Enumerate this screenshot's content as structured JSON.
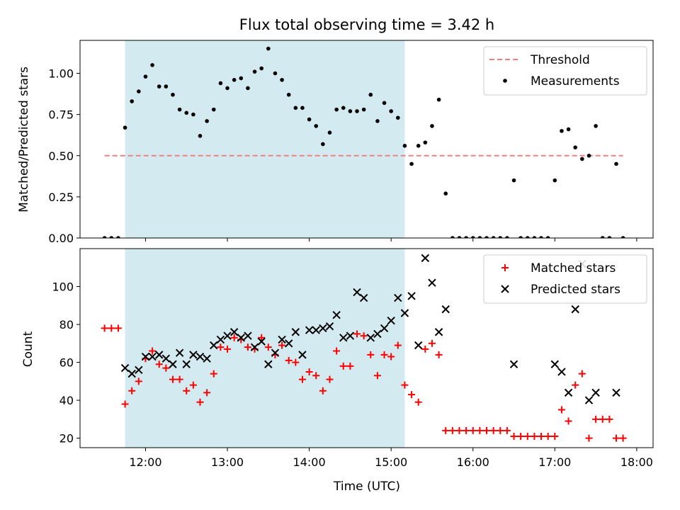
{
  "chart_data": [
    {
      "type": "scatter",
      "title": "Flux total observing time = 3.42 h",
      "xlabel": "",
      "ylabel": "Matched/Predicted stars",
      "xlim": [
        "11:12",
        "18:12"
      ],
      "ylim": [
        0,
        1.2
      ],
      "yticks": [
        0.0,
        0.25,
        0.5,
        0.75,
        1.0
      ],
      "ytick_labels": [
        "0.00",
        "0.25",
        "0.50",
        "0.75",
        "1.00"
      ],
      "xticks": [
        "12:00",
        "13:00",
        "14:00",
        "15:00",
        "16:00",
        "17:00",
        "18:00"
      ],
      "shaded_span": [
        "11:45",
        "15:10"
      ],
      "shaded_color": "#d4eaf1",
      "legend_position": "upper right",
      "series": [
        {
          "name": "Threshold",
          "kind": "dashed-line",
          "color": "#f08080",
          "x": [
            "11:30",
            "17:50"
          ],
          "y": [
            0.5,
            0.5
          ]
        },
        {
          "name": "Measurements",
          "kind": "dot",
          "color": "#000000",
          "points": [
            [
              "11:30",
              0
            ],
            [
              "11:35",
              0
            ],
            [
              "11:40",
              0
            ],
            [
              "11:45",
              0.67
            ],
            [
              "11:50",
              0.83
            ],
            [
              "11:55",
              0.89
            ],
            [
              "12:00",
              0.98
            ],
            [
              "12:05",
              1.05
            ],
            [
              "12:10",
              0.92
            ],
            [
              "12:15",
              0.92
            ],
            [
              "12:20",
              0.87
            ],
            [
              "12:25",
              0.78
            ],
            [
              "12:30",
              0.76
            ],
            [
              "12:35",
              0.75
            ],
            [
              "12:40",
              0.62
            ],
            [
              "12:45",
              0.71
            ],
            [
              "12:50",
              0.78
            ],
            [
              "12:55",
              0.94
            ],
            [
              "13:00",
              0.91
            ],
            [
              "13:05",
              0.96
            ],
            [
              "13:10",
              0.97
            ],
            [
              "13:15",
              0.91
            ],
            [
              "13:20",
              1.01
            ],
            [
              "13:25",
              1.03
            ],
            [
              "13:30",
              1.15
            ],
            [
              "13:35",
              1.0
            ],
            [
              "13:40",
              0.96
            ],
            [
              "13:45",
              0.87
            ],
            [
              "13:50",
              0.79
            ],
            [
              "13:55",
              0.79
            ],
            [
              "14:00",
              0.72
            ],
            [
              "14:05",
              0.68
            ],
            [
              "14:10",
              0.57
            ],
            [
              "14:15",
              0.64
            ],
            [
              "14:20",
              0.78
            ],
            [
              "14:25",
              0.79
            ],
            [
              "14:30",
              0.77
            ],
            [
              "14:35",
              0.77
            ],
            [
              "14:40",
              0.78
            ],
            [
              "14:45",
              0.87
            ],
            [
              "14:50",
              0.71
            ],
            [
              "14:55",
              0.82
            ],
            [
              "15:00",
              0.77
            ],
            [
              "15:05",
              0.73
            ],
            [
              "15:10",
              0.56
            ],
            [
              "15:15",
              0.45
            ],
            [
              "15:20",
              0.56
            ],
            [
              "15:25",
              0.58
            ],
            [
              "15:30",
              0.68
            ],
            [
              "15:35",
              0.84
            ],
            [
              "15:40",
              0.27
            ],
            [
              "15:45",
              0
            ],
            [
              "15:50",
              0
            ],
            [
              "15:55",
              0
            ],
            [
              "16:00",
              0
            ],
            [
              "16:05",
              0
            ],
            [
              "16:10",
              0
            ],
            [
              "16:15",
              0
            ],
            [
              "16:20",
              0
            ],
            [
              "16:25",
              0
            ],
            [
              "16:30",
              0.35
            ],
            [
              "16:35",
              0
            ],
            [
              "16:40",
              0
            ],
            [
              "16:45",
              0
            ],
            [
              "16:50",
              0
            ],
            [
              "16:55",
              0
            ],
            [
              "17:00",
              0.35
            ],
            [
              "17:05",
              0.65
            ],
            [
              "17:10",
              0.66
            ],
            [
              "17:15",
              0.55
            ],
            [
              "17:20",
              0.48
            ],
            [
              "17:25",
              0.5
            ],
            [
              "17:30",
              0.68
            ],
            [
              "17:35",
              0
            ],
            [
              "17:40",
              0
            ],
            [
              "17:45",
              0.45
            ],
            [
              "17:50",
              0
            ]
          ]
        }
      ]
    },
    {
      "type": "scatter",
      "title": "",
      "xlabel": "Time (UTC)",
      "ylabel": "Count",
      "xlim": [
        "11:12",
        "18:12"
      ],
      "ylim": [
        15,
        120
      ],
      "yticks": [
        20,
        40,
        60,
        80,
        100
      ],
      "ytick_labels": [
        "20",
        "40",
        "60",
        "80",
        "100"
      ],
      "xticks": [
        "12:00",
        "13:00",
        "14:00",
        "15:00",
        "16:00",
        "17:00",
        "18:00"
      ],
      "xtick_labels": [
        "12:00",
        "13:00",
        "14:00",
        "15:00",
        "16:00",
        "17:00",
        "18:00"
      ],
      "shaded_span": [
        "11:45",
        "15:10"
      ],
      "shaded_color": "#d4eaf1",
      "legend_position": "upper right",
      "series": [
        {
          "name": "Matched stars",
          "kind": "plus",
          "color": "#ff0000",
          "points": [
            [
              "11:30",
              78
            ],
            [
              "11:35",
              78
            ],
            [
              "11:40",
              78
            ],
            [
              "11:45",
              38
            ],
            [
              "11:50",
              45
            ],
            [
              "11:55",
              50
            ],
            [
              "12:00",
              62
            ],
            [
              "12:05",
              66
            ],
            [
              "12:10",
              59
            ],
            [
              "12:15",
              57
            ],
            [
              "12:20",
              51
            ],
            [
              "12:25",
              51
            ],
            [
              "12:30",
              45
            ],
            [
              "12:35",
              48
            ],
            [
              "12:40",
              39
            ],
            [
              "12:45",
              44
            ],
            [
              "12:50",
              54
            ],
            [
              "12:55",
              68
            ],
            [
              "13:00",
              67
            ],
            [
              "13:05",
              73
            ],
            [
              "13:10",
              72
            ],
            [
              "13:15",
              68
            ],
            [
              "13:20",
              67
            ],
            [
              "13:25",
              73
            ],
            [
              "13:30",
              68
            ],
            [
              "13:35",
              64
            ],
            [
              "13:40",
              69
            ],
            [
              "13:45",
              61
            ],
            [
              "13:50",
              60
            ],
            [
              "13:55",
              51
            ],
            [
              "14:00",
              55
            ],
            [
              "14:05",
              53
            ],
            [
              "14:10",
              45
            ],
            [
              "14:15",
              51
            ],
            [
              "14:20",
              66
            ],
            [
              "14:25",
              58
            ],
            [
              "14:30",
              58
            ],
            [
              "14:35",
              75
            ],
            [
              "14:40",
              74
            ],
            [
              "14:45",
              64
            ],
            [
              "14:50",
              53
            ],
            [
              "14:55",
              64
            ],
            [
              "15:00",
              63
            ],
            [
              "15:05",
              69
            ],
            [
              "15:10",
              48
            ],
            [
              "15:15",
              43
            ],
            [
              "15:20",
              39
            ],
            [
              "15:25",
              67
            ],
            [
              "15:30",
              70
            ],
            [
              "15:35",
              64
            ],
            [
              "15:40",
              24
            ],
            [
              "15:45",
              24
            ],
            [
              "15:50",
              24
            ],
            [
              "15:55",
              24
            ],
            [
              "16:00",
              24
            ],
            [
              "16:05",
              24
            ],
            [
              "16:10",
              24
            ],
            [
              "16:15",
              24
            ],
            [
              "16:20",
              24
            ],
            [
              "16:25",
              24
            ],
            [
              "16:30",
              21
            ],
            [
              "16:35",
              21
            ],
            [
              "16:40",
              21
            ],
            [
              "16:45",
              21
            ],
            [
              "16:50",
              21
            ],
            [
              "16:55",
              21
            ],
            [
              "17:00",
              21
            ],
            [
              "17:05",
              35
            ],
            [
              "17:10",
              29
            ],
            [
              "17:15",
              48
            ],
            [
              "17:20",
              54
            ],
            [
              "17:25",
              20
            ],
            [
              "17:30",
              30
            ],
            [
              "17:35",
              30
            ],
            [
              "17:40",
              30
            ],
            [
              "17:45",
              20
            ],
            [
              "17:50",
              20
            ]
          ]
        },
        {
          "name": "Predicted stars",
          "kind": "x",
          "color": "#000000",
          "points": [
            [
              "11:45",
              57
            ],
            [
              "11:50",
              54
            ],
            [
              "11:55",
              56
            ],
            [
              "12:00",
              63
            ],
            [
              "12:05",
              63
            ],
            [
              "12:10",
              64
            ],
            [
              "12:15",
              62
            ],
            [
              "12:20",
              59
            ],
            [
              "12:25",
              65
            ],
            [
              "12:30",
              59
            ],
            [
              "12:35",
              64
            ],
            [
              "12:40",
              63
            ],
            [
              "12:45",
              62
            ],
            [
              "12:50",
              69
            ],
            [
              "12:55",
              72
            ],
            [
              "13:00",
              74
            ],
            [
              "13:05",
              76
            ],
            [
              "13:10",
              73
            ],
            [
              "13:15",
              74
            ],
            [
              "13:20",
              68
            ],
            [
              "13:25",
              71
            ],
            [
              "13:30",
              59
            ],
            [
              "13:35",
              65
            ],
            [
              "13:40",
              72
            ],
            [
              "13:45",
              70
            ],
            [
              "13:50",
              76
            ],
            [
              "13:55",
              64
            ],
            [
              "14:00",
              77
            ],
            [
              "14:05",
              77
            ],
            [
              "14:10",
              78
            ],
            [
              "14:15",
              79
            ],
            [
              "14:20",
              85
            ],
            [
              "14:25",
              73
            ],
            [
              "14:30",
              74
            ],
            [
              "14:35",
              97
            ],
            [
              "14:40",
              94
            ],
            [
              "14:45",
              73
            ],
            [
              "14:50",
              75
            ],
            [
              "14:55",
              78
            ],
            [
              "15:00",
              82
            ],
            [
              "15:05",
              94
            ],
            [
              "15:10",
              86
            ],
            [
              "15:15",
              95
            ],
            [
              "15:20",
              69
            ],
            [
              "15:25",
              115
            ],
            [
              "15:30",
              102
            ],
            [
              "15:35",
              76
            ],
            [
              "15:40",
              88
            ],
            [
              "16:30",
              59
            ],
            [
              "17:00",
              59
            ],
            [
              "17:05",
              55
            ],
            [
              "17:10",
              44
            ],
            [
              "17:15",
              88
            ],
            [
              "17:20",
              112
            ],
            [
              "17:25",
              40
            ],
            [
              "17:30",
              44
            ],
            [
              "17:45",
              44
            ]
          ]
        }
      ]
    }
  ]
}
